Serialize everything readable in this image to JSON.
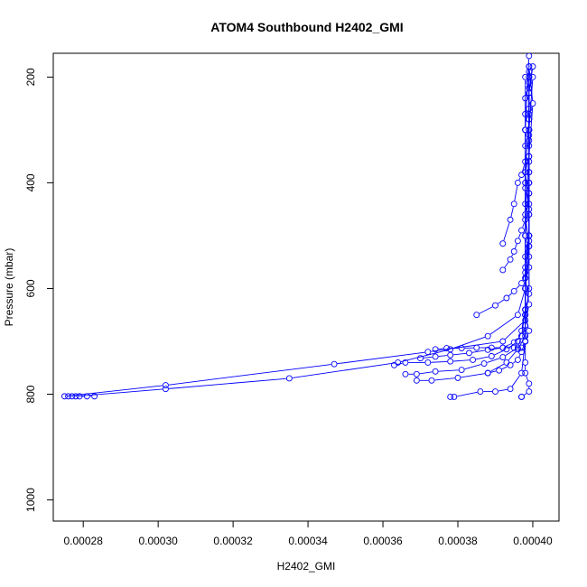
{
  "chart_data": {
    "type": "scatter",
    "title": "ATOM4 Southbound H2402_GMI",
    "xlabel": "H2402_GMI",
    "ylabel": "Pressure (mbar)",
    "xlim": [
      0.000272,
      0.000407
    ],
    "ylim": [
      1040,
      155
    ],
    "y_reversed": true,
    "x_ticks": [
      "0.00028",
      "0.00030",
      "0.00032",
      "0.00034",
      "0.00036",
      "0.00038",
      "0.00040"
    ],
    "y_ticks": [
      "200",
      "400",
      "600",
      "800",
      "1000"
    ],
    "grid": false,
    "series_color": "#0000ff",
    "marker": "open-circle",
    "profiles": [
      [
        [
          0.000283,
          804
        ],
        [
          0.000281,
          804
        ],
        [
          0.000279,
          804
        ],
        [
          0.000277,
          804
        ],
        [
          0.000276,
          804
        ],
        [
          0.000275,
          804
        ],
        [
          0.000302,
          783
        ],
        [
          0.000347,
          743
        ],
        [
          0.000372,
          720
        ],
        [
          0.000392,
          700
        ],
        [
          0.000398,
          660
        ],
        [
          0.000399,
          600
        ],
        [
          0.000399,
          500
        ],
        [
          0.000399,
          400
        ],
        [
          0.000399,
          300
        ],
        [
          0.000399,
          200
        ]
      ],
      [
        [
          0.000278,
          804
        ],
        [
          0.000302,
          790
        ],
        [
          0.000335,
          770
        ],
        [
          0.000364,
          740
        ],
        [
          0.000378,
          715
        ],
        [
          0.000388,
          690
        ],
        [
          0.000396,
          650
        ],
        [
          0.000398,
          600
        ],
        [
          0.000398,
          500
        ],
        [
          0.000398,
          400
        ],
        [
          0.000398,
          300
        ],
        [
          0.000399,
          160
        ]
      ],
      [
        [
          0.000378,
          805
        ],
        [
          0.000379,
          805
        ],
        [
          0.000386,
          795
        ],
        [
          0.00039,
          795
        ],
        [
          0.000394,
          790
        ],
        [
          0.000397,
          760
        ],
        [
          0.000398,
          700
        ],
        [
          0.000398,
          650
        ],
        [
          0.000398,
          600
        ],
        [
          0.000399,
          500
        ],
        [
          0.000399,
          400
        ],
        [
          0.000399,
          300
        ],
        [
          0.0004,
          200
        ]
      ],
      [
        [
          0.000397,
          805
        ],
        [
          0.000397,
          805
        ],
        [
          0.000399,
          795
        ],
        [
          0.000399,
          780
        ],
        [
          0.000398,
          760
        ],
        [
          0.000398,
          740
        ],
        [
          0.000398,
          700
        ],
        [
          0.000398,
          600
        ],
        [
          0.000398,
          500
        ],
        [
          0.000398,
          400
        ],
        [
          0.000398,
          300
        ],
        [
          0.000398,
          200
        ]
      ],
      [
        [
          0.000369,
          774
        ],
        [
          0.000373,
          774
        ],
        [
          0.00038,
          769
        ],
        [
          0.000388,
          760
        ],
        [
          0.000393,
          740
        ],
        [
          0.000396,
          715
        ],
        [
          0.000398,
          690
        ],
        [
          0.000398,
          650
        ],
        [
          0.000398,
          600
        ],
        [
          0.000398,
          500
        ],
        [
          0.000399,
          400
        ],
        [
          0.000399,
          300
        ],
        [
          0.000399,
          200
        ]
      ],
      [
        [
          0.000366,
          762
        ],
        [
          0.000369,
          762
        ],
        [
          0.000374,
          757
        ],
        [
          0.000381,
          754
        ],
        [
          0.000387,
          742
        ],
        [
          0.000392,
          730
        ],
        [
          0.000396,
          712
        ],
        [
          0.000397,
          690
        ],
        [
          0.000398,
          640
        ],
        [
          0.000398,
          580
        ],
        [
          0.000399,
          520
        ],
        [
          0.000398,
          460
        ],
        [
          0.000399,
          350
        ],
        [
          0.0004,
          250
        ],
        [
          0.000399,
          180
        ]
      ],
      [
        [
          0.000363,
          745
        ],
        [
          0.000366,
          740
        ],
        [
          0.000372,
          740
        ],
        [
          0.000378,
          738
        ],
        [
          0.000384,
          735
        ],
        [
          0.000389,
          728
        ],
        [
          0.000393,
          715
        ],
        [
          0.000396,
          700
        ],
        [
          0.000397,
          680
        ],
        [
          0.000398,
          640
        ],
        [
          0.000398,
          600
        ],
        [
          0.000398,
          560
        ],
        [
          0.000399,
          500
        ],
        [
          0.000399,
          420
        ],
        [
          0.000399,
          320
        ],
        [
          0.000399,
          220
        ]
      ],
      [
        [
          0.00037,
          732
        ],
        [
          0.000374,
          729
        ],
        [
          0.000378,
          726
        ],
        [
          0.000383,
          722
        ],
        [
          0.000388,
          716
        ],
        [
          0.000392,
          712
        ],
        [
          0.000395,
          702
        ],
        [
          0.000397,
          690
        ],
        [
          0.000398,
          670
        ],
        [
          0.000398,
          640
        ],
        [
          0.000398,
          600
        ],
        [
          0.000399,
          540
        ],
        [
          0.000399,
          460
        ],
        [
          0.000398,
          380
        ],
        [
          0.000399,
          280
        ],
        [
          0.000399,
          200
        ]
      ],
      [
        [
          0.000374,
          715
        ],
        [
          0.000377,
          713
        ],
        [
          0.000381,
          713
        ],
        [
          0.000385,
          712
        ],
        [
          0.000389,
          712
        ],
        [
          0.000392,
          712
        ],
        [
          0.000395,
          712
        ],
        [
          0.000397,
          712
        ],
        [
          0.000398,
          700
        ],
        [
          0.000398,
          670
        ],
        [
          0.000399,
          630
        ],
        [
          0.000398,
          580
        ],
        [
          0.000399,
          520
        ],
        [
          0.000399,
          440
        ],
        [
          0.000399,
          360
        ],
        [
          0.000399,
          260
        ]
      ],
      [
        [
          0.000385,
          650
        ],
        [
          0.00039,
          632
        ],
        [
          0.000393,
          618
        ],
        [
          0.000395,
          605
        ],
        [
          0.000397,
          590
        ],
        [
          0.000398,
          570
        ],
        [
          0.000398,
          540
        ],
        [
          0.000399,
          500
        ],
        [
          0.000399,
          460
        ],
        [
          0.000399,
          420
        ],
        [
          0.000399,
          380
        ],
        [
          0.000399,
          330
        ],
        [
          0.000399,
          280
        ],
        [
          0.000399,
          230
        ],
        [
          0.0004,
          180
        ]
      ],
      [
        [
          0.000392,
          515
        ],
        [
          0.000394,
          470
        ],
        [
          0.000395,
          440
        ],
        [
          0.000396,
          400
        ],
        [
          0.000397,
          385
        ],
        [
          0.000398,
          360
        ],
        [
          0.000398,
          330
        ],
        [
          0.000398,
          300
        ],
        [
          0.000398,
          270
        ],
        [
          0.000398,
          240
        ],
        [
          0.000399,
          210
        ],
        [
          0.000399,
          180
        ]
      ],
      [
        [
          0.000392,
          565
        ],
        [
          0.000394,
          545
        ],
        [
          0.000395,
          530
        ],
        [
          0.000396,
          510
        ],
        [
          0.000397,
          490
        ],
        [
          0.000398,
          470
        ],
        [
          0.000398,
          440
        ],
        [
          0.000398,
          410
        ],
        [
          0.000398,
          380
        ],
        [
          0.000399,
          350
        ],
        [
          0.000399,
          310
        ],
        [
          0.000399,
          270
        ],
        [
          0.000399,
          230
        ],
        [
          0.000399,
          190
        ]
      ],
      [
        [
          0.000388,
          760
        ],
        [
          0.000391,
          755
        ],
        [
          0.000394,
          745
        ],
        [
          0.000396,
          735
        ],
        [
          0.000397,
          720
        ],
        [
          0.000398,
          700
        ],
        [
          0.000399,
          680
        ],
        [
          0.000398,
          650
        ],
        [
          0.000399,
          610
        ],
        [
          0.000399,
          560
        ],
        [
          0.000399,
          510
        ],
        [
          0.000399,
          450
        ],
        [
          0.000399,
          380
        ],
        [
          0.000399,
          300
        ],
        [
          0.000399,
          230
        ]
      ]
    ]
  }
}
